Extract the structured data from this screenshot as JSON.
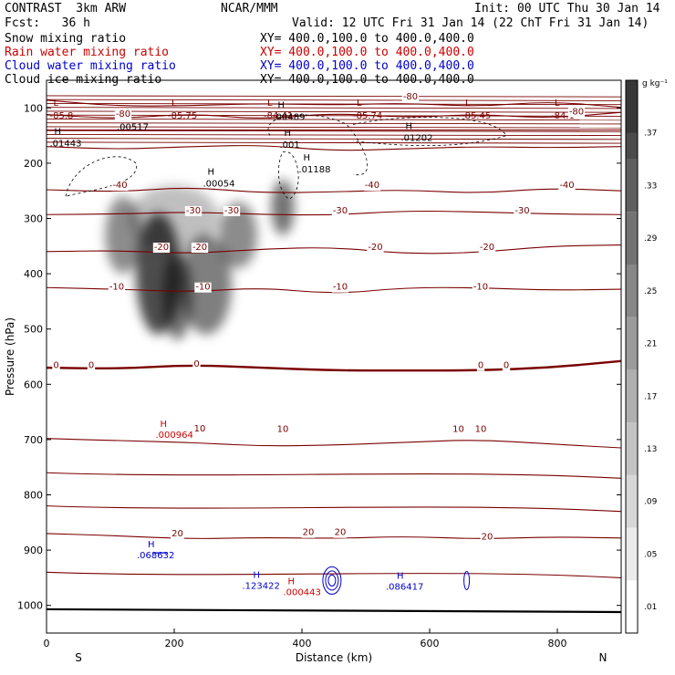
{
  "header": {
    "model": "CONTRAST  3km ARW",
    "org": "NCAR/MMM",
    "init": "Init: 00 UTC Thu 30 Jan 14",
    "fcst": "Fcst:   36 h",
    "valid": "Valid: 12 UTC Fri 31 Jan 14 (22 ChT Fri 31 Jan 14)",
    "fields": [
      {
        "name": "Snow mixing ratio",
        "xy": "XY= 400.0,100.0 to 400.0,400.0",
        "color": "#000000"
      },
      {
        "name": "Rain water mixing ratio",
        "xy": "XY= 400.0,100.0 to 400.0,400.0",
        "color": "#cc0000"
      },
      {
        "name": "Cloud water mixing ratio",
        "xy": "XY= 400.0,100.0 to 400.0,400.0",
        "color": "#0000cc"
      },
      {
        "name": "Cloud ice mixing ratio",
        "xy": "XY= 400.0,100.0 to 400.0,400.0",
        "color": "#000000"
      }
    ]
  },
  "chart_data": {
    "type": "contour-cross-section",
    "xlabel": "Distance (km)",
    "ylabel": "Pressure (hPa)",
    "xlim": [
      0,
      900
    ],
    "ylim": [
      1050,
      50
    ],
    "x_ticks": [
      0,
      200,
      400,
      600,
      800
    ],
    "x_tick_labels": [
      "0",
      "200",
      "400",
      "600",
      "800"
    ],
    "y_ticks": [
      100,
      200,
      300,
      400,
      500,
      600,
      700,
      800,
      900,
      1000
    ],
    "y_tick_labels": [
      "100",
      "200",
      "300",
      "400",
      "500",
      "600",
      "700",
      "800",
      "900",
      "1000"
    ],
    "endpoints": {
      "left": "S",
      "right": "N"
    },
    "colorbar": {
      "unit": "g kg⁻¹",
      "levels": [
        0.01,
        0.05,
        0.09,
        0.13,
        0.17,
        0.21,
        0.25,
        0.29,
        0.33,
        0.37
      ],
      "labels": [
        ".01",
        ".05",
        ".09",
        ".13",
        ".17",
        ".21",
        ".25",
        ".29",
        ".33",
        ".37"
      ]
    },
    "temperature_contours": [
      {
        "level": -80,
        "p": [
          86,
          97,
          96,
          92,
          95,
          91,
          98,
          88,
          99
        ]
      },
      {
        "level": -70,
        "p": [
          112,
          120,
          110,
          121,
          109,
          118,
          111,
          119,
          108
        ]
      },
      {
        "level": -60,
        "p": [
          140,
          140,
          140,
          140,
          140,
          140,
          140,
          140,
          140
        ]
      },
      {
        "level": -50,
        "p": [
          170,
          175,
          170,
          167,
          178,
          174,
          170,
          172,
          170
        ]
      },
      {
        "level": -40,
        "p": [
          248,
          252,
          243,
          254,
          252,
          248,
          255,
          245,
          250
        ]
      },
      {
        "level": -30,
        "p": [
          293,
          292,
          288,
          293,
          294,
          286,
          288,
          292,
          293
        ]
      },
      {
        "level": -20,
        "p": [
          360,
          358,
          364,
          355,
          352,
          364,
          362,
          350,
          348
        ]
      },
      {
        "level": -10,
        "p": [
          425,
          428,
          433,
          425,
          437,
          425,
          425,
          430,
          428
        ]
      },
      {
        "level": 0,
        "p": [
          570,
          572,
          565,
          570,
          575,
          575,
          575,
          570,
          558
        ]
      },
      {
        "level": 10,
        "p": [
          698,
          702,
          705,
          712,
          710,
          705,
          700,
          708,
          715
        ]
      },
      {
        "level": 20,
        "p": [
          870,
          874,
          880,
          877,
          879,
          875,
          880,
          876,
          878
        ]
      }
    ],
    "snow_max": 0.37,
    "labels": {
      "maxima": [
        {
          "x": 5,
          "p": 108,
          "text": "-85.8"
        },
        {
          "x": 190,
          "p": 108,
          "text": "-85.75"
        },
        {
          "x": 340,
          "p": 108,
          "text": "-84.41"
        },
        {
          "x": 480,
          "p": 108,
          "text": "-85.74"
        },
        {
          "x": 650,
          "p": 108,
          "text": "-85.45"
        },
        {
          "x": 790,
          "p": 108,
          "text": "-84.1"
        }
      ],
      "ice_highs": [
        {
          "x": 5,
          "p": 160,
          "text": ".01443"
        },
        {
          "x": 110,
          "p": 130,
          "text": ".00517"
        },
        {
          "x": 245,
          "p": 232,
          "text": ".00054"
        },
        {
          "x": 355,
          "p": 112,
          "text": ".00489"
        },
        {
          "x": 365,
          "p": 162,
          "text": ".001"
        },
        {
          "x": 555,
          "p": 150,
          "text": ".01202"
        },
        {
          "x": 395,
          "p": 207,
          "text": ".01188"
        }
      ],
      "rain_highs": [
        {
          "x": 235,
          "p": 690,
          "text": ".000964"
        },
        {
          "x": 435,
          "p": 975,
          "text": ".000443"
        }
      ],
      "cloud_water_highs": [
        {
          "x": 170,
          "p": 915,
          "text": ".068632"
        },
        {
          "x": 335,
          "p": 970,
          "text": ".123422"
        },
        {
          "x": 560,
          "p": 972,
          "text": ".086417"
        }
      ],
      "contour_values": [
        {
          "x": 120,
          "p": 116,
          "text": "-80"
        },
        {
          "x": 570,
          "p": 85,
          "text": "-80"
        },
        {
          "x": 830,
          "p": 112,
          "text": "-80"
        },
        {
          "x": 115,
          "p": 245,
          "text": "-40"
        },
        {
          "x": 510,
          "p": 245,
          "text": "-40"
        },
        {
          "x": 815,
          "p": 245,
          "text": "-40"
        },
        {
          "x": 230,
          "p": 291,
          "text": "-30"
        },
        {
          "x": 290,
          "p": 291,
          "text": "-30"
        },
        {
          "x": 460,
          "p": 291,
          "text": "-30"
        },
        {
          "x": 745,
          "p": 291,
          "text": "-30"
        },
        {
          "x": 180,
          "p": 357,
          "text": "-20"
        },
        {
          "x": 240,
          "p": 357,
          "text": "-20"
        },
        {
          "x": 515,
          "p": 357,
          "text": "-20"
        },
        {
          "x": 690,
          "p": 357,
          "text": "-20"
        },
        {
          "x": 110,
          "p": 429,
          "text": "-10"
        },
        {
          "x": 245,
          "p": 429,
          "text": "-10"
        },
        {
          "x": 460,
          "p": 429,
          "text": "-10"
        },
        {
          "x": 680,
          "p": 429,
          "text": "-10"
        },
        {
          "x": 15,
          "p": 571,
          "text": "0"
        },
        {
          "x": 70,
          "p": 571,
          "text": "0"
        },
        {
          "x": 235,
          "p": 568,
          "text": "0"
        },
        {
          "x": 680,
          "p": 571,
          "text": "0"
        },
        {
          "x": 720,
          "p": 571,
          "text": "0"
        },
        {
          "x": 240,
          "p": 685,
          "text": "10"
        },
        {
          "x": 370,
          "p": 686,
          "text": "10"
        },
        {
          "x": 645,
          "p": 686,
          "text": "10"
        },
        {
          "x": 680,
          "p": 686,
          "text": "10"
        },
        {
          "x": 205,
          "p": 875,
          "text": "20"
        },
        {
          "x": 410,
          "p": 873,
          "text": "20"
        },
        {
          "x": 460,
          "p": 873,
          "text": "20"
        },
        {
          "x": 690,
          "p": 881,
          "text": "20"
        }
      ]
    }
  }
}
